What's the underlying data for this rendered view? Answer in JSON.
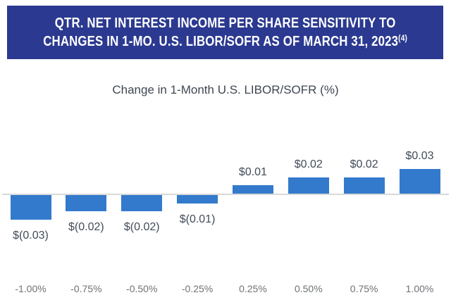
{
  "banner": {
    "title_line1": "QTR. NET INTEREST INCOME PER SHARE SENSITIVITY TO",
    "title_line2": "CHANGES IN 1-MO. U.S. LIBOR/SOFR AS OF MARCH 31, 2023",
    "title_superscript": "(4)",
    "background_color": "#2B3990",
    "text_color": "#FFFFFF"
  },
  "subtitle": "Change in 1-Month U.S. LIBOR/SOFR (%)",
  "colors": {
    "bar": "#337ACC",
    "baseline": "#D9D9D9",
    "value_label": "#414B57",
    "axis_label": "#6E7276",
    "subtitle": "#3E4751"
  },
  "chart_data": {
    "type": "bar",
    "title": "Qtr. Net Interest Income Per Share Sensitivity to Changes in 1-Mo. U.S. LIBOR/SOFR as of March 31, 2023 (4)",
    "xlabel": "Change in 1-Month U.S. LIBOR/SOFR (%)",
    "ylabel": "",
    "categories": [
      "-1.00%",
      "-0.75%",
      "-0.50%",
      "-0.25%",
      "0.25%",
      "0.50%",
      "0.75%",
      "1.00%"
    ],
    "values": [
      -0.03,
      -0.02,
      -0.02,
      -0.01,
      0.01,
      0.02,
      0.02,
      0.03
    ],
    "value_labels": [
      "$(0.03)",
      "$(0.02)",
      "$(0.02)",
      "$(0.01)",
      "$0.01",
      "$0.02",
      "$0.02",
      "$0.03"
    ],
    "ylim": [
      -0.04,
      0.04
    ],
    "grid": false,
    "legend": false,
    "bar_color": "#337ACC",
    "baseline_color": "#D9D9D9"
  }
}
